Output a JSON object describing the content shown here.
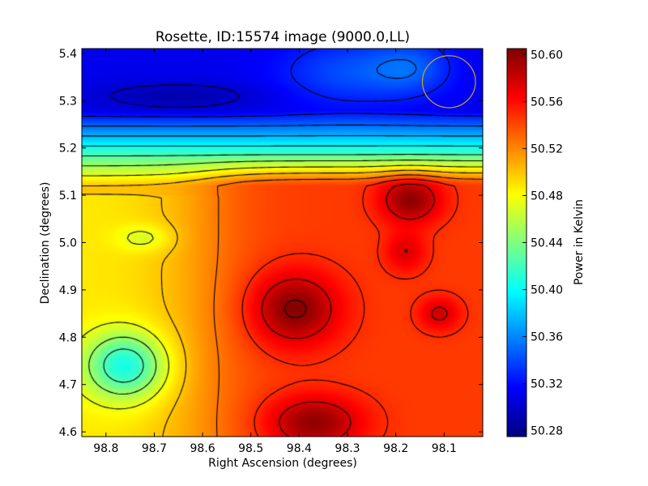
{
  "chart_data": {
    "type": "heatmap",
    "title": "Rosette, ID:15574 image (9000.0,LL)",
    "xlabel": "Right Ascension (degrees)",
    "ylabel": "Declination (degrees)",
    "xlim": [
      98.85,
      98.02
    ],
    "ylim": [
      4.59,
      5.41
    ],
    "x_inverted": true,
    "x_ticks": [
      "98.8",
      "98.7",
      "98.6",
      "98.5",
      "98.4",
      "98.3",
      "98.2",
      "98.1"
    ],
    "y_ticks": [
      "4.6",
      "4.7",
      "4.8",
      "4.9",
      "5.0",
      "5.1",
      "5.2",
      "5.3",
      "5.4"
    ],
    "colorbar": {
      "label": "Power in Kelvin",
      "range": [
        50.275,
        50.605
      ],
      "ticks": [
        "50.28",
        "50.32",
        "50.36",
        "50.40",
        "50.44",
        "50.48",
        "50.52",
        "50.56",
        "50.60"
      ],
      "colormap": "jet"
    },
    "contours": true,
    "marker": {
      "shape": "circle",
      "color": "#c8a532",
      "ra": 98.09,
      "dec": 5.34,
      "radius_deg": 0.055
    },
    "features": [
      {
        "kind": "max",
        "ra": 98.41,
        "dec": 4.85,
        "value": 50.595
      },
      {
        "kind": "max",
        "ra": 98.37,
        "dec": 4.62,
        "value": 50.59
      },
      {
        "kind": "max",
        "ra": 98.17,
        "dec": 5.09,
        "value": 50.595
      },
      {
        "kind": "max",
        "ra": 98.18,
        "dec": 4.98,
        "value": 50.56
      },
      {
        "kind": "max",
        "ra": 98.11,
        "dec": 4.85,
        "value": 50.57
      },
      {
        "kind": "min",
        "ra": 98.65,
        "dec": 5.31,
        "value": 50.28
      },
      {
        "kind": "min",
        "ra": 98.76,
        "dec": 4.74,
        "value": 50.405
      },
      {
        "kind": "min",
        "ra": 98.72,
        "dec": 5.01,
        "value": 50.47
      }
    ]
  }
}
